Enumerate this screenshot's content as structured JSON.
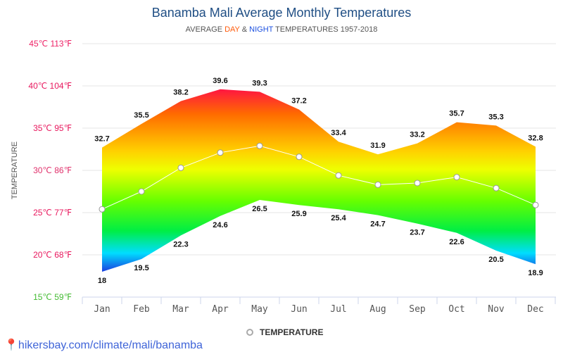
{
  "title": "Banamba Mali Average Monthly Temperatures",
  "subtitle": {
    "prefix": "AVERAGE ",
    "day": "DAY",
    "amp": " & ",
    "night": "NIGHT",
    "suffix": " TEMPERATURES 1957-2018"
  },
  "footer": {
    "link": "hikersbay.com/climate/mali/banamba",
    "icon": "location-pin-icon"
  },
  "chart_data": {
    "type": "area",
    "ylabel": "TEMPERATURE",
    "ylim": [
      15,
      45
    ],
    "yticks": [
      {
        "v": 45,
        "label": "45℃ 113℉",
        "color": "#ee2266"
      },
      {
        "v": 40,
        "label": "40℃ 104℉",
        "color": "#e8175d"
      },
      {
        "v": 35,
        "label": "35℃ 95℉",
        "color": "#e8175d"
      },
      {
        "v": 30,
        "label": "30℃ 86℉",
        "color": "#e0306b"
      },
      {
        "v": 25,
        "label": "25℃ 77℉",
        "color": "#e8175d"
      },
      {
        "v": 20,
        "label": "20℃ 68℉",
        "color": "#e8175d"
      },
      {
        "v": 15,
        "label": "15℃ 59℉",
        "color": "#44bb33"
      }
    ],
    "categories": [
      "Jan",
      "Feb",
      "Mar",
      "Apr",
      "May",
      "Jun",
      "Jul",
      "Aug",
      "Sep",
      "Oct",
      "Nov",
      "Dec"
    ],
    "series": [
      {
        "name": "Day",
        "values": [
          32.7,
          35.5,
          38.2,
          39.6,
          39.3,
          37.2,
          33.4,
          31.9,
          33.2,
          35.7,
          35.3,
          32.8
        ]
      },
      {
        "name": "Night",
        "values": [
          18,
          19.5,
          22.3,
          24.6,
          26.5,
          25.9,
          25.4,
          24.7,
          23.7,
          22.6,
          20.5,
          18.9
        ]
      },
      {
        "name": "TEMPERATURE",
        "values": [
          25.4,
          27.5,
          30.3,
          32.1,
          32.9,
          31.6,
          29.4,
          28.3,
          28.5,
          29.2,
          27.9,
          25.9
        ]
      }
    ],
    "legend": {
      "label": "TEMPERATURE",
      "position": "bottom"
    }
  }
}
